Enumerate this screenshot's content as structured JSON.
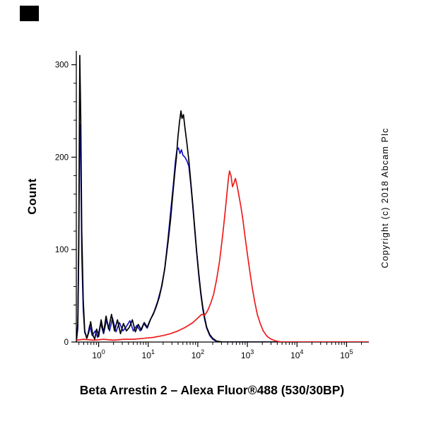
{
  "page": {
    "caption": "Beta Arrestin 2 – Alexa Fluor®488 (530/30BP)",
    "copyright": "Copyright (c) 2018 Abcam Plc"
  },
  "chart_data": {
    "type": "line",
    "title": "",
    "xlabel": "",
    "ylabel": "Count",
    "x_scale": "log10",
    "xlim_log10": [
      -0.45,
      5.45
    ],
    "x_ticks_exponents": [
      0,
      1,
      2,
      3,
      4,
      5
    ],
    "ylim": [
      0,
      315
    ],
    "y_ticks": [
      0,
      100,
      200,
      300
    ],
    "y_minor_step": 20,
    "grid": false,
    "legend": "none",
    "series": [
      {
        "name": "blue-curve",
        "color": "#1515cc",
        "points": [
          [
            -0.45,
            0
          ],
          [
            -0.42,
            15
          ],
          [
            -0.4,
            100
          ],
          [
            -0.38,
            235
          ],
          [
            -0.36,
            200
          ],
          [
            -0.34,
            95
          ],
          [
            -0.31,
            35
          ],
          [
            -0.28,
            10
          ],
          [
            -0.23,
            5
          ],
          [
            -0.18,
            18
          ],
          [
            -0.13,
            7
          ],
          [
            -0.07,
            12
          ],
          [
            -0.02,
            5
          ],
          [
            0.04,
            20
          ],
          [
            0.1,
            9
          ],
          [
            0.16,
            24
          ],
          [
            0.22,
            12
          ],
          [
            0.28,
            26
          ],
          [
            0.35,
            11
          ],
          [
            0.42,
            21
          ],
          [
            0.49,
            12
          ],
          [
            0.56,
            17
          ],
          [
            0.63,
            23
          ],
          [
            0.7,
            12
          ],
          [
            0.77,
            18
          ],
          [
            0.84,
            12
          ],
          [
            0.91,
            20
          ],
          [
            0.98,
            15
          ],
          [
            1.05,
            25
          ],
          [
            1.12,
            33
          ],
          [
            1.19,
            44
          ],
          [
            1.26,
            58
          ],
          [
            1.33,
            78
          ],
          [
            1.4,
            112
          ],
          [
            1.46,
            145
          ],
          [
            1.51,
            172
          ],
          [
            1.55,
            196
          ],
          [
            1.58,
            208
          ],
          [
            1.61,
            210
          ],
          [
            1.64,
            204
          ],
          [
            1.67,
            208
          ],
          [
            1.7,
            202
          ],
          [
            1.74,
            200
          ],
          [
            1.78,
            196
          ],
          [
            1.82,
            190
          ],
          [
            1.86,
            170
          ],
          [
            1.9,
            146
          ],
          [
            1.94,
            120
          ],
          [
            1.98,
            95
          ],
          [
            2.02,
            72
          ],
          [
            2.06,
            52
          ],
          [
            2.1,
            36
          ],
          [
            2.14,
            24
          ],
          [
            2.18,
            15
          ],
          [
            2.24,
            7
          ],
          [
            2.3,
            3
          ],
          [
            2.4,
            0
          ],
          [
            3.0,
            0
          ],
          [
            4.0,
            0
          ],
          [
            5.45,
            0
          ]
        ]
      },
      {
        "name": "black-curve",
        "color": "#000000",
        "points": [
          [
            -0.45,
            0
          ],
          [
            -0.42,
            20
          ],
          [
            -0.4,
            120
          ],
          [
            -0.38,
            310
          ],
          [
            -0.36,
            240
          ],
          [
            -0.34,
            120
          ],
          [
            -0.31,
            45
          ],
          [
            -0.28,
            12
          ],
          [
            -0.24,
            4
          ],
          [
            -0.2,
            10
          ],
          [
            -0.16,
            22
          ],
          [
            -0.12,
            8
          ],
          [
            -0.08,
            3
          ],
          [
            -0.04,
            14
          ],
          [
            0.0,
            6
          ],
          [
            0.05,
            24
          ],
          [
            0.1,
            10
          ],
          [
            0.15,
            28
          ],
          [
            0.2,
            14
          ],
          [
            0.26,
            30
          ],
          [
            0.32,
            12
          ],
          [
            0.38,
            24
          ],
          [
            0.44,
            9
          ],
          [
            0.5,
            20
          ],
          [
            0.56,
            12
          ],
          [
            0.62,
            16
          ],
          [
            0.68,
            24
          ],
          [
            0.74,
            11
          ],
          [
            0.8,
            19
          ],
          [
            0.86,
            13
          ],
          [
            0.92,
            21
          ],
          [
            0.98,
            16
          ],
          [
            1.04,
            24
          ],
          [
            1.1,
            30
          ],
          [
            1.16,
            38
          ],
          [
            1.22,
            48
          ],
          [
            1.28,
            62
          ],
          [
            1.34,
            82
          ],
          [
            1.4,
            108
          ],
          [
            1.45,
            132
          ],
          [
            1.5,
            162
          ],
          [
            1.54,
            185
          ],
          [
            1.57,
            200
          ],
          [
            1.6,
            222
          ],
          [
            1.63,
            238
          ],
          [
            1.66,
            250
          ],
          [
            1.68,
            242
          ],
          [
            1.71,
            246
          ],
          [
            1.74,
            232
          ],
          [
            1.78,
            215
          ],
          [
            1.82,
            196
          ],
          [
            1.86,
            172
          ],
          [
            1.9,
            148
          ],
          [
            1.94,
            122
          ],
          [
            1.98,
            96
          ],
          [
            2.02,
            74
          ],
          [
            2.06,
            54
          ],
          [
            2.1,
            38
          ],
          [
            2.14,
            26
          ],
          [
            2.18,
            16
          ],
          [
            2.24,
            8
          ],
          [
            2.3,
            4
          ],
          [
            2.38,
            1
          ],
          [
            2.5,
            0
          ],
          [
            3.0,
            0
          ],
          [
            4.0,
            0
          ],
          [
            5.45,
            0
          ]
        ]
      },
      {
        "name": "red-curve",
        "color": "#ee1c1c",
        "points": [
          [
            -0.45,
            2
          ],
          [
            -0.3,
            3
          ],
          [
            -0.1,
            2
          ],
          [
            0.1,
            3
          ],
          [
            0.3,
            2
          ],
          [
            0.5,
            3
          ],
          [
            0.7,
            3
          ],
          [
            0.9,
            4
          ],
          [
            1.1,
            5
          ],
          [
            1.3,
            7
          ],
          [
            1.45,
            9
          ],
          [
            1.6,
            12
          ],
          [
            1.75,
            16
          ],
          [
            1.9,
            21
          ],
          [
            2.0,
            26
          ],
          [
            2.08,
            30
          ],
          [
            2.14,
            29
          ],
          [
            2.2,
            34
          ],
          [
            2.26,
            42
          ],
          [
            2.32,
            52
          ],
          [
            2.38,
            68
          ],
          [
            2.44,
            88
          ],
          [
            2.5,
            115
          ],
          [
            2.55,
            140
          ],
          [
            2.59,
            162
          ],
          [
            2.62,
            178
          ],
          [
            2.64,
            185
          ],
          [
            2.67,
            180
          ],
          [
            2.7,
            168
          ],
          [
            2.73,
            172
          ],
          [
            2.76,
            177
          ],
          [
            2.79,
            170
          ],
          [
            2.83,
            158
          ],
          [
            2.87,
            146
          ],
          [
            2.91,
            132
          ],
          [
            2.95,
            115
          ],
          [
            3.0,
            95
          ],
          [
            3.05,
            76
          ],
          [
            3.1,
            58
          ],
          [
            3.15,
            43
          ],
          [
            3.2,
            30
          ],
          [
            3.26,
            20
          ],
          [
            3.32,
            12
          ],
          [
            3.4,
            6
          ],
          [
            3.48,
            3
          ],
          [
            3.58,
            1
          ],
          [
            3.7,
            0
          ],
          [
            4.5,
            0
          ],
          [
            5.45,
            0
          ]
        ]
      }
    ]
  },
  "colors": {
    "background": "#ffffff",
    "axis": "#000000",
    "black_series": "#000000",
    "blue_series": "#1515cc",
    "red_series": "#ee1c1c"
  }
}
